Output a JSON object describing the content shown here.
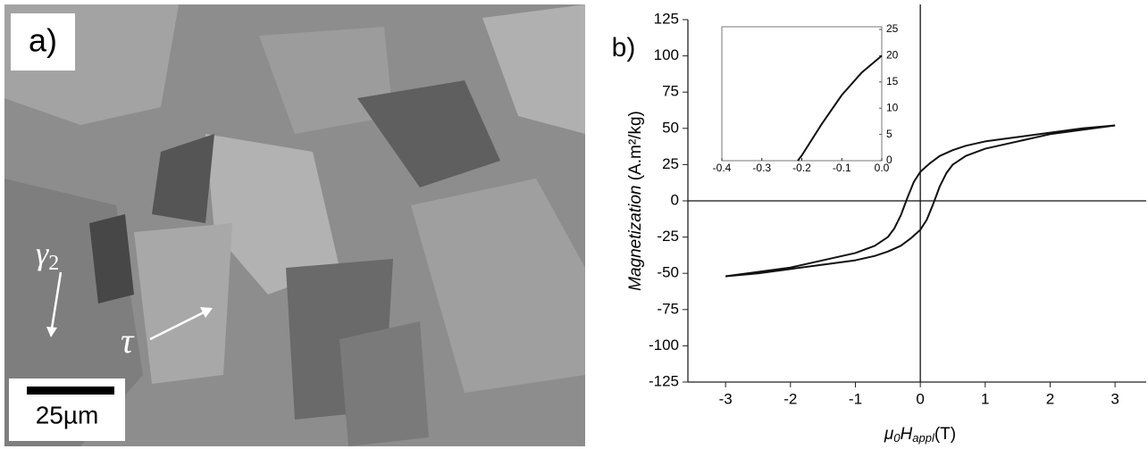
{
  "image": {
    "panel_label": "a)",
    "gamma_symbol": "γ",
    "gamma_subscript": "2",
    "tau_symbol": "τ",
    "scale_label": "25µm"
  },
  "chart_data": [
    {
      "type": "line",
      "panel_label": "b)",
      "ylabel": {
        "italic": "Magnetization",
        "unit": "(A.m²/kg)"
      },
      "xlabel": {
        "mu": "μ",
        "mu_sub": "0",
        "h": "H",
        "h_sub": "appl",
        "unit": "(T)"
      },
      "xlim": [
        -3.58,
        3.48
      ],
      "ylim": [
        -125,
        125
      ],
      "xticks": [
        -3,
        -2,
        -1,
        0,
        1,
        2,
        3
      ],
      "yticks": [
        -125,
        -100,
        -75,
        -50,
        -25,
        0,
        25,
        50,
        75,
        100,
        125
      ],
      "series": [
        {
          "color": "#111111",
          "x": [
            3,
            2.5,
            2,
            1.5,
            1,
            0.7,
            0.5,
            0.3,
            0.15,
            0,
            -0.1,
            -0.2,
            -0.3,
            -0.4,
            -0.5,
            -0.7,
            -1,
            -1.5,
            -2,
            -2.5,
            -3
          ],
          "values": [
            52,
            50,
            47,
            44,
            41,
            38,
            35,
            31,
            26,
            20,
            13,
            2,
            -10,
            -19,
            -25,
            -31,
            -36,
            -41,
            -46,
            -49,
            -52
          ]
        },
        {
          "color": "#111111",
          "x": [
            -3,
            -2.5,
            -2,
            -1.5,
            -1,
            -0.7,
            -0.5,
            -0.3,
            -0.15,
            0,
            0.1,
            0.2,
            0.3,
            0.4,
            0.5,
            0.7,
            1,
            1.5,
            2,
            2.5,
            3
          ],
          "values": [
            -52,
            -50,
            -47,
            -44,
            -41,
            -38,
            -35,
            -31,
            -26,
            -20,
            -13,
            -2,
            10,
            19,
            25,
            31,
            36,
            41,
            46,
            49,
            52
          ]
        }
      ]
    },
    {
      "type": "line",
      "xlim": [
        -0.4,
        0.0
      ],
      "ylim": [
        0,
        25
      ],
      "xticks": [
        -0.4,
        -0.3,
        -0.2,
        -0.1,
        {
          "value": 0,
          "label": "0.0"
        }
      ],
      "yticks": [
        0,
        5,
        10,
        15,
        20,
        25
      ],
      "series": [
        {
          "color": "#111111",
          "x": [
            -0.21,
            -0.2,
            -0.15,
            -0.1,
            -0.05,
            0
          ],
          "values": [
            0,
            1,
            7,
            12.5,
            16.8,
            20
          ]
        }
      ]
    }
  ]
}
